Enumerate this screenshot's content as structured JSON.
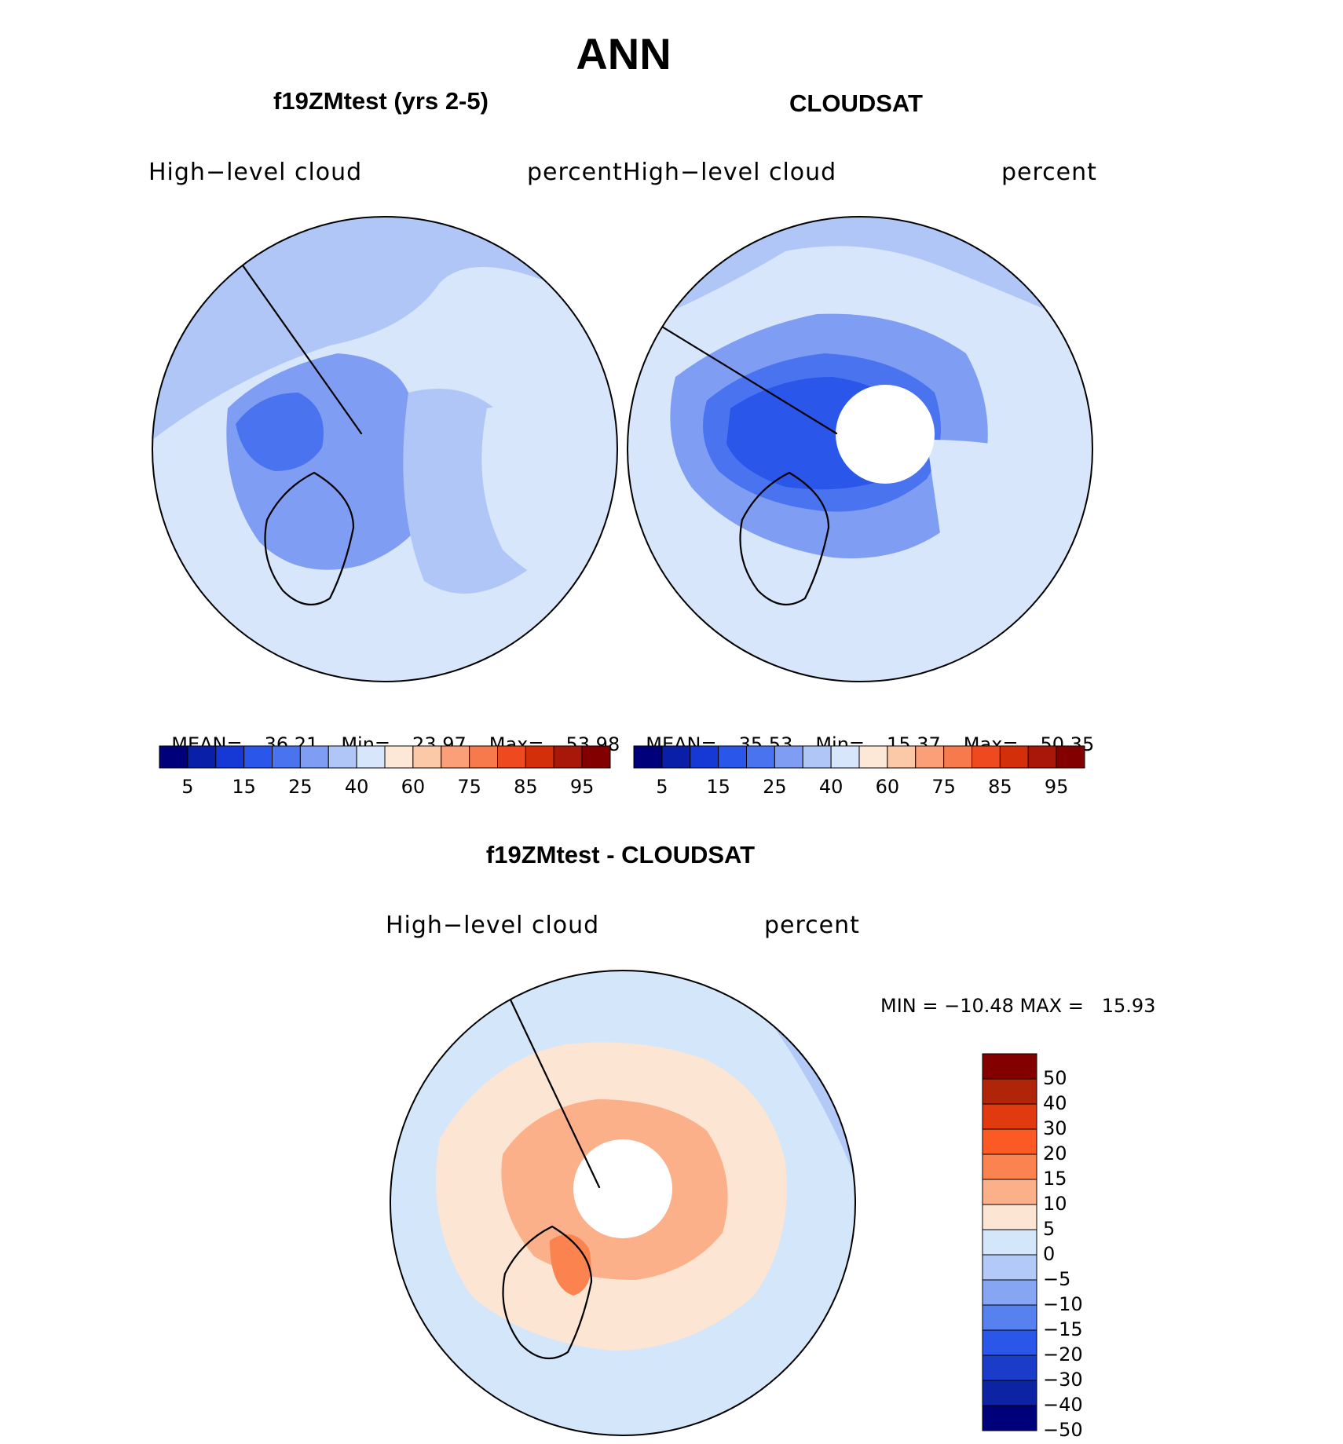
{
  "figure": {
    "title": "ANN"
  },
  "panels": {
    "model": {
      "title": "f19ZMtest (yrs 2-5)",
      "variable": "High−level  cloud",
      "units": "percent",
      "stats": {
        "mean_label": "MEAN=",
        "mean": "36.21",
        "min_label": "Min=",
        "min": "23.97",
        "max_label": "Max=",
        "max": "53.98"
      }
    },
    "obs": {
      "title": "CLOUDSAT",
      "variable": "High−level  cloud",
      "units": "percent",
      "stats": {
        "mean_label": "MEAN=",
        "mean": "35.53",
        "min_label": "Min=",
        "min": "15.37",
        "max_label": "Max=",
        "max": "50.35"
      }
    },
    "diff": {
      "title": "f19ZMtest - CLOUDSAT",
      "variable": "High−level  cloud",
      "units": "percent",
      "minmax_text": "MIN = −10.48 MAX =   15.93"
    }
  },
  "chart_data": [
    {
      "type": "heatmap",
      "projection": "north-polar-stereographic",
      "title": "f19ZMtest (yrs 2-5)",
      "variable": "High-level cloud",
      "units": "percent",
      "mean": 36.21,
      "min": 23.97,
      "max": 53.98,
      "levels": [
        5,
        10,
        15,
        20,
        25,
        30,
        40,
        50,
        60,
        70,
        75,
        80,
        85,
        90,
        95
      ],
      "level_labels": [
        "5",
        "15",
        "25",
        "40",
        "60",
        "75",
        "85",
        "95"
      ]
    },
    {
      "type": "heatmap",
      "projection": "north-polar-stereographic",
      "title": "CLOUDSAT",
      "variable": "High-level cloud",
      "units": "percent",
      "mean": 35.53,
      "min": 15.37,
      "max": 50.35,
      "levels": [
        5,
        10,
        15,
        20,
        25,
        30,
        40,
        50,
        60,
        70,
        75,
        80,
        85,
        90,
        95
      ],
      "level_labels": [
        "5",
        "15",
        "25",
        "40",
        "60",
        "75",
        "85",
        "95"
      ],
      "missing_polar_cap": true
    },
    {
      "type": "heatmap",
      "projection": "north-polar-stereographic",
      "title": "f19ZMtest - CLOUDSAT",
      "variable": "High-level cloud",
      "units": "percent",
      "min": -10.48,
      "max": 15.93,
      "levels": [
        50,
        40,
        30,
        20,
        15,
        10,
        5,
        0,
        -5,
        -10,
        -15,
        -20,
        -30,
        -40,
        -50
      ],
      "level_labels": [
        "50",
        "40",
        "30",
        "20",
        "15",
        "10",
        "5",
        "0",
        "−5",
        "−10",
        "−15",
        "−20",
        "−30",
        "−40",
        "−50"
      ],
      "missing_polar_cap": true
    }
  ],
  "palettes": {
    "abs": [
      "#00007a",
      "#0a1fa8",
      "#1638d4",
      "#2a56ea",
      "#4a73f0",
      "#7f9ef3",
      "#b0c6f7",
      "#d7e6fb",
      "#fde7d6",
      "#fcc9a8",
      "#fa9f78",
      "#f77a4c",
      "#ef4a1f",
      "#d42f0b",
      "#a8180a",
      "#820000"
    ],
    "diff": [
      "#820000",
      "#b0250a",
      "#e23a10",
      "#fb5a25",
      "#fa8350",
      "#fbb08a",
      "#fde5d3",
      "#d4e6fa",
      "#b3c9f7",
      "#86a6f3",
      "#5781ee",
      "#2a57ea",
      "#1b3cc9",
      "#0c24a3",
      "#00007a"
    ],
    "land_line": "#000000"
  }
}
